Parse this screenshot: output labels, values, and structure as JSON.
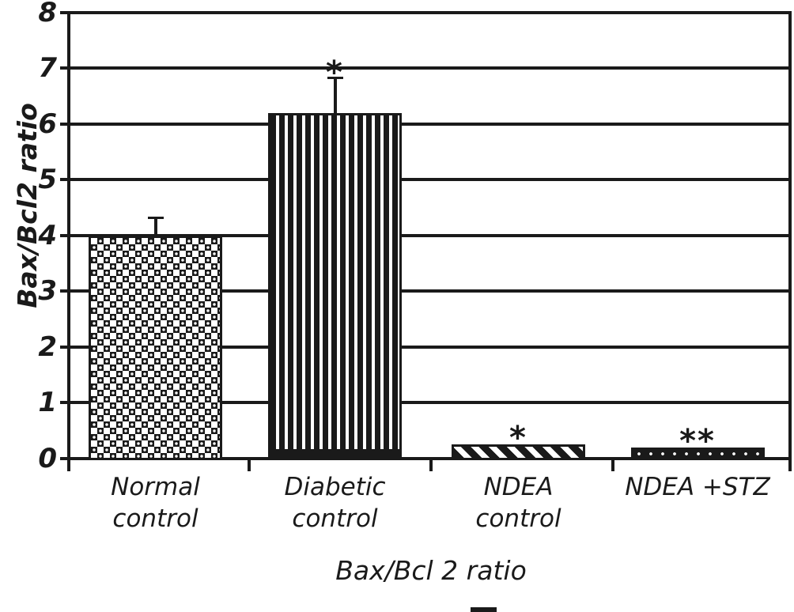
{
  "figure": {
    "background": "#ffffff",
    "ink": "#1a1a1a"
  },
  "chart_data": {
    "type": "bar",
    "title": "",
    "xlabel": "Bax/Bcl 2 ratio",
    "ylabel": "Bax/Bcl2 ratio",
    "ylim": [
      0,
      8
    ],
    "yticks": [
      0,
      1,
      2,
      3,
      4,
      5,
      6,
      7,
      8
    ],
    "grid": "horizontal",
    "legend_position": "none",
    "categories": [
      "Normal control",
      "Diabetic control",
      "NDEA control",
      "NDEA +STZ"
    ],
    "category_label_lines": [
      [
        "Normal",
        "control"
      ],
      [
        "Diabetic",
        "control"
      ],
      [
        "NDEA",
        "control"
      ],
      [
        "NDEA +STZ"
      ]
    ],
    "values": [
      4.0,
      6.2,
      0.25,
      0.2
    ],
    "errors_plus": [
      0.3,
      0.6,
      0,
      0
    ],
    "significance": [
      "",
      "*",
      "*",
      "**"
    ],
    "bar_patterns": [
      "checker-dot",
      "vertical-stripes",
      "diagonal-stripes",
      "solid-white-dots"
    ]
  }
}
